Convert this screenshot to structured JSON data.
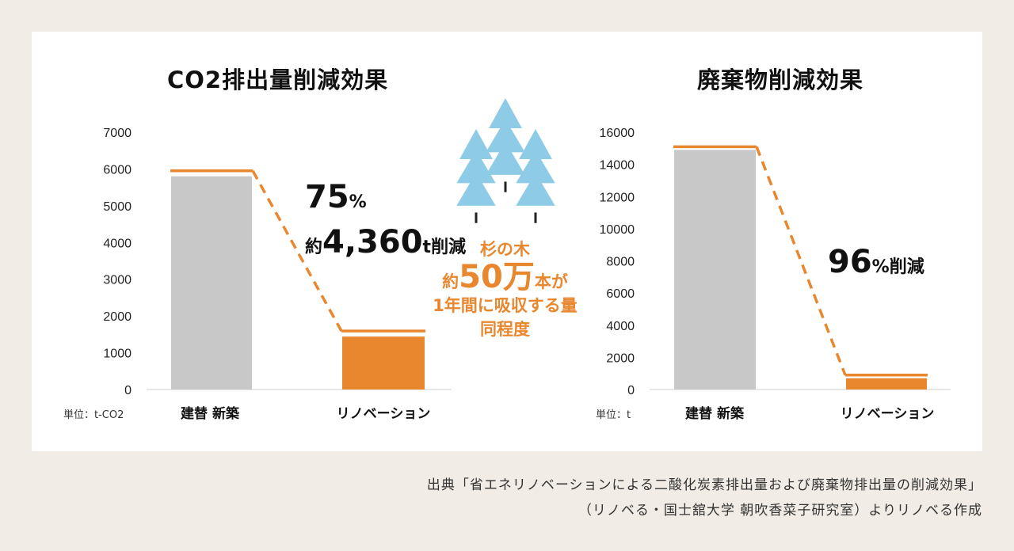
{
  "chart_data": [
    {
      "type": "bar",
      "title": "CO2排出量削減効果",
      "unit_label": "単位：t-CO2",
      "categories": [
        "建替 新築",
        "リノベーション"
      ],
      "values": [
        5800,
        1440
      ],
      "colors": [
        "#c8c8c8",
        "#e9872f"
      ],
      "ylim": [
        0,
        7000
      ],
      "yticks": [
        "0",
        "1000",
        "2000",
        "3000",
        "4000",
        "5000",
        "6000",
        "7000"
      ],
      "grid": false,
      "annotation": {
        "percent_num": "75",
        "percent_sym": "%",
        "prefix": "約",
        "amount": "4,360",
        "suffix": "t削減"
      }
    },
    {
      "type": "bar",
      "title": "廃棄物削減効果",
      "unit_label": "単位：t",
      "categories": [
        "建替 新築",
        "リノベーション"
      ],
      "values": [
        14900,
        700
      ],
      "colors": [
        "#c8c8c8",
        "#e9872f"
      ],
      "ylim": [
        0,
        16000
      ],
      "yticks": [
        "0",
        "2000",
        "4000",
        "6000",
        "8000",
        "10000",
        "12000",
        "14000",
        "16000"
      ],
      "grid": false,
      "annotation": {
        "percent_num": "96",
        "percent_sym": "%",
        "suffix": "削減"
      }
    }
  ],
  "tree_note": {
    "line1": "杉の木",
    "line2_prefix": "約",
    "line2_big": "50万",
    "line2_suffix": "本が",
    "line3": "1年間に吸収する量",
    "line4": "同程度"
  },
  "source": {
    "line1": "出典「省エネリノベーションによる二酸化炭素排出量および廃棄物排出量の削減効果」",
    "line2": "（リノベる・国士舘大学 朝吹香菜子研究室）よりリノベる作成"
  },
  "colors": {
    "background": "#f1ece6",
    "panel": "#ffffff",
    "accent": "#e9872f",
    "gray_bar": "#c8c8c8",
    "tree": "#8ecbe6"
  },
  "icons": [
    "cedar-tree-icon"
  ]
}
